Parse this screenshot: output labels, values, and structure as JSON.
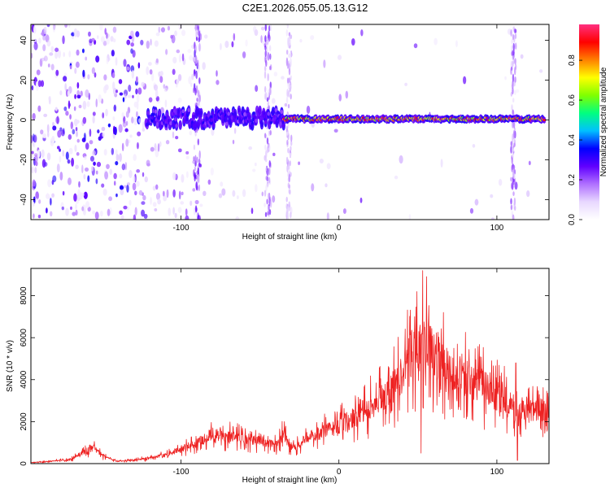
{
  "title": "C2E1.2026.055.05.13.G12",
  "chart_data": [
    {
      "type": "heatmap",
      "name": "spectrogram",
      "xlabel": "Height of straight line (km)",
      "ylabel": "Frequency (Hz)",
      "xlim": [
        -195,
        133
      ],
      "ylim": [
        -50,
        48
      ],
      "xticks": [
        -100,
        0,
        100
      ],
      "yticks": [
        -40,
        -20,
        0,
        20,
        40
      ],
      "colorbar": {
        "label": "Normalized spectral amplitude",
        "range": [
          0,
          0.98
        ],
        "ticks": [
          0.0,
          0.2,
          0.4,
          0.6,
          0.8
        ],
        "tick_labels": [
          "0.0",
          "0.2",
          "0.4",
          "0.6",
          "0.8"
        ],
        "colormap": [
          "#ffffff",
          "#e8d8ff",
          "#b070ff",
          "#6000ff",
          "#0000ff",
          "#00c0ff",
          "#00ff80",
          "#80ff00",
          "#ffff00",
          "#ff8000",
          "#ff0000",
          "#ff3080"
        ]
      },
      "signal_track": {
        "description_free": true,
        "segments": [
          {
            "x_start": -122,
            "x_end": -35,
            "center_hz": 1,
            "amplitude": 0.3
          },
          {
            "x_start": -35,
            "x_end": 130,
            "center_hz": 0.5,
            "amplitude": 0.9
          }
        ]
      }
    },
    {
      "type": "line",
      "name": "snr",
      "xlabel": "Height of straight line (km)",
      "ylabel": "SNR (10 * v/v)",
      "xlim": [
        -195,
        133
      ],
      "ylim": [
        0,
        9300
      ],
      "xticks": [
        -100,
        0,
        100
      ],
      "yticks": [
        0,
        2000,
        4000,
        6000,
        8000
      ],
      "color": "#ee2222",
      "envelope": {
        "x": [
          -195,
          -170,
          -160,
          -155,
          -150,
          -140,
          -120,
          -110,
          -100,
          -90,
          -80,
          -70,
          -60,
          -50,
          -40,
          -35,
          -30,
          -20,
          -10,
          0,
          10,
          20,
          30,
          40,
          45,
          50,
          55,
          60,
          70,
          80,
          90,
          100,
          108,
          112,
          116,
          120,
          133
        ],
        "y": [
          50,
          180,
          600,
          750,
          400,
          100,
          250,
          400,
          700,
          1000,
          1400,
          1300,
          1200,
          1100,
          900,
          1400,
          700,
          1200,
          1500,
          1800,
          2200,
          2700,
          3200,
          4200,
          5200,
          5600,
          5900,
          5200,
          4400,
          4100,
          3700,
          3200,
          2900,
          2200,
          2700,
          2500,
          2400
        ]
      },
      "peaks": [
        {
          "x": 53,
          "y": 9200
        },
        {
          "x": 52,
          "y": 8600
        },
        {
          "x": 48,
          "y": 7000
        },
        {
          "x": 112,
          "y": 4800
        }
      ],
      "dips": [
        {
          "x": 52,
          "y": 500
        },
        {
          "x": 113,
          "y": 150
        }
      ]
    }
  ]
}
